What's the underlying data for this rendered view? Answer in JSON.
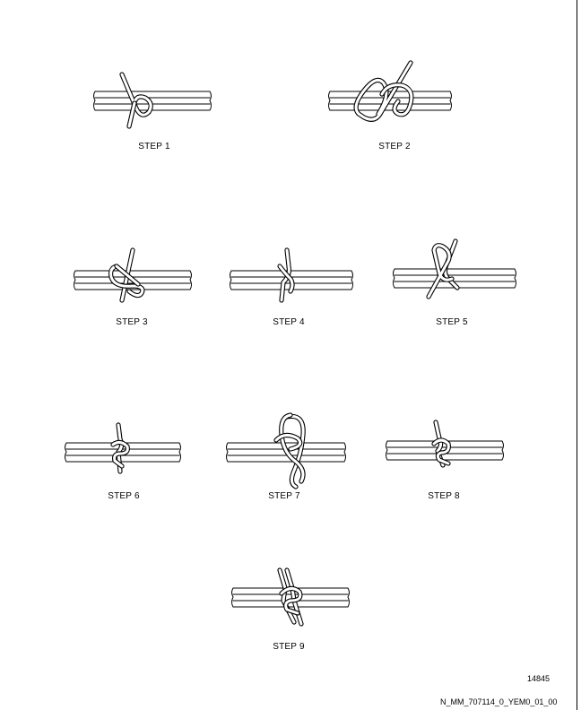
{
  "figure": {
    "steps": [
      {
        "label": "STEP 1"
      },
      {
        "label": "STEP 2"
      },
      {
        "label": "STEP 3"
      },
      {
        "label": "STEP 4"
      },
      {
        "label": "STEP 5"
      },
      {
        "label": "STEP 6"
      },
      {
        "label": "STEP 7"
      },
      {
        "label": "STEP 8"
      },
      {
        "label": "STEP 9"
      }
    ],
    "figure_number": "14845",
    "document_code": "N_MM_707114_0_YEM0_01_00"
  }
}
